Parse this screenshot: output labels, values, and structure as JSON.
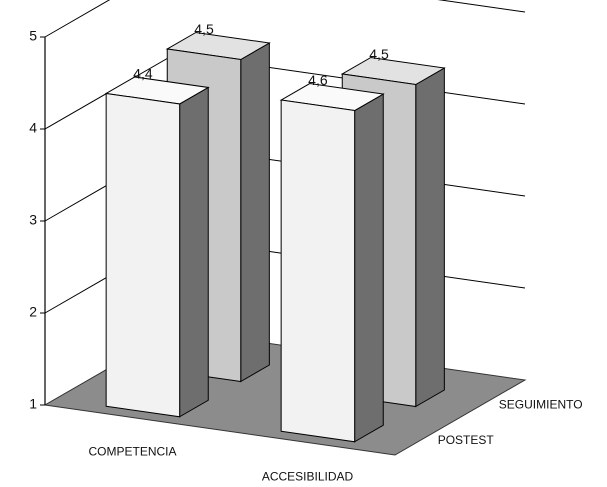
{
  "chart_data": {
    "type": "bar3d",
    "categories": [
      "COMPETENCIA",
      "ACCESIBILIDAD"
    ],
    "series": [
      {
        "name": "POSTEST",
        "color": "#f2f2f2",
        "values": [
          4.4,
          4.6
        ],
        "value_labels": [
          "4,4",
          "4,6"
        ]
      },
      {
        "name": "SEGUIMIENTO",
        "color": "#c9c9c9",
        "values": [
          4.5,
          4.5
        ],
        "value_labels": [
          "4,5",
          "4,5"
        ]
      }
    ],
    "ylim": [
      1,
      5
    ],
    "yticks": [
      1,
      2,
      3,
      4,
      5
    ],
    "grid": true
  }
}
